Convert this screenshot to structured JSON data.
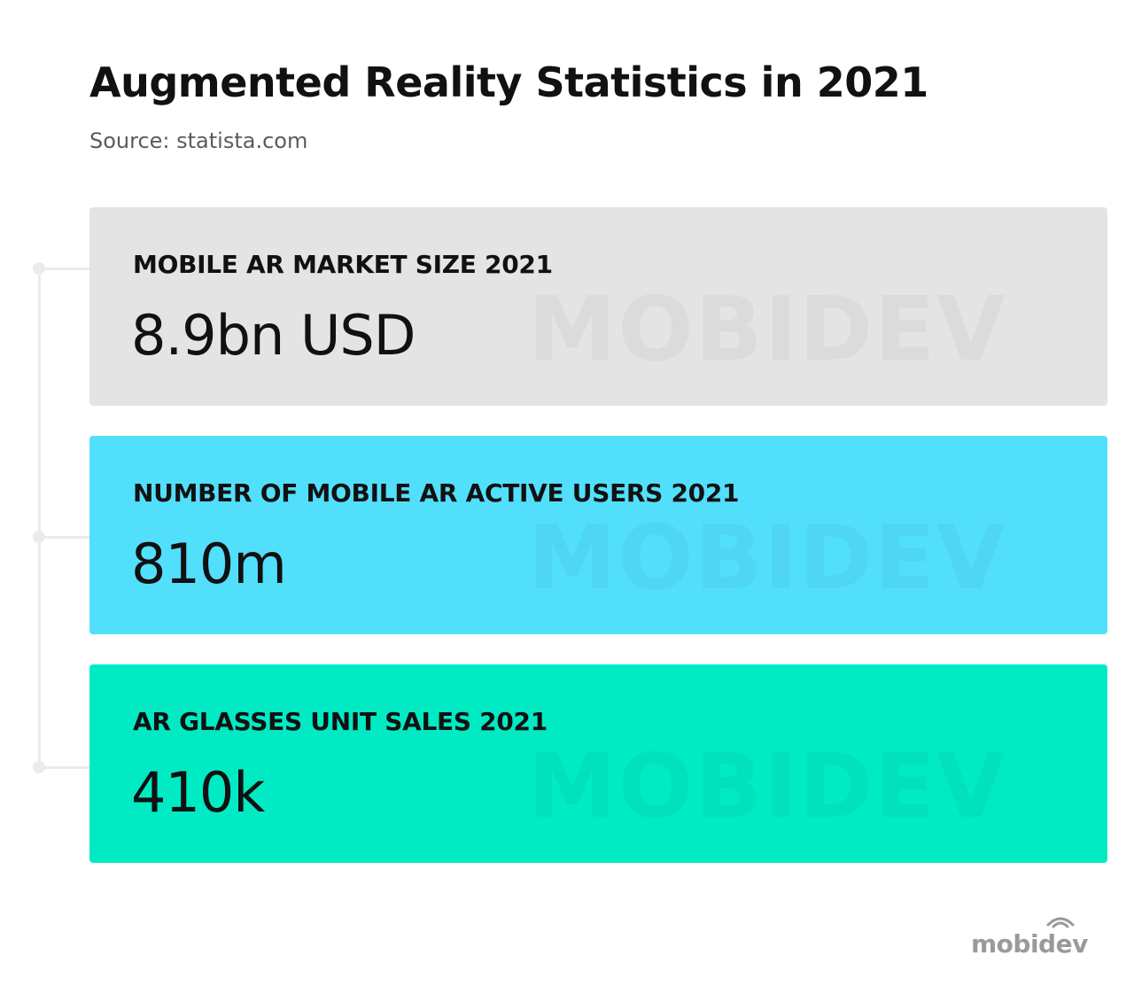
{
  "header": {
    "title": "Augmented Reality Statistics in 2021",
    "source": "Source: statista.com"
  },
  "stats": [
    {
      "label": "MOBILE AR MARKET SIZE 2021",
      "value": "8.9bn USD",
      "watermark": "MOBIDEV",
      "color": "#e4e4e4"
    },
    {
      "label": "NUMBER OF MOBILE AR ACTIVE USERS 2021",
      "value": "810m",
      "watermark": "MOBIDEV",
      "color": "#52dffc"
    },
    {
      "label": "AR GLASSES UNIT SALES 2021",
      "value": "410k",
      "watermark": "MOBIDEV",
      "color": "#00ebc4"
    }
  ],
  "logo": {
    "text": "mobidev",
    "icon": "wifi-signal-icon",
    "color": "#9a9a9a"
  },
  "connector_color": "#ebebeb"
}
